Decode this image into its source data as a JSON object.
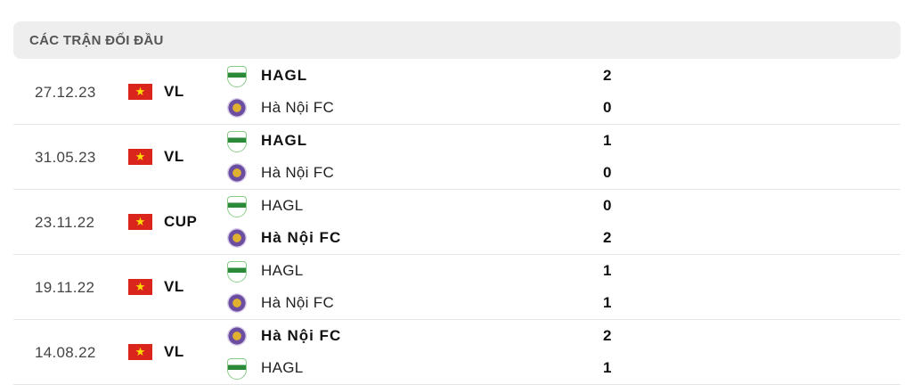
{
  "title": "CÁC TRẬN ĐỐI ĐẦU",
  "matches": [
    {
      "date": "27.12.23",
      "competition": "VL",
      "home": {
        "name": "HAGL",
        "logo": "hagl",
        "score": "2",
        "winner": true
      },
      "away": {
        "name": "Hà Nội FC",
        "logo": "hn",
        "score": "0",
        "winner": false
      }
    },
    {
      "date": "31.05.23",
      "competition": "VL",
      "home": {
        "name": "HAGL",
        "logo": "hagl",
        "score": "1",
        "winner": true
      },
      "away": {
        "name": "Hà Nội FC",
        "logo": "hn",
        "score": "0",
        "winner": false
      }
    },
    {
      "date": "23.11.22",
      "competition": "CUP",
      "home": {
        "name": "HAGL",
        "logo": "hagl",
        "score": "0",
        "winner": false
      },
      "away": {
        "name": "Hà Nội FC",
        "logo": "hn",
        "score": "2",
        "winner": true
      }
    },
    {
      "date": "19.11.22",
      "competition": "VL",
      "home": {
        "name": "HAGL",
        "logo": "hagl",
        "score": "1",
        "winner": false
      },
      "away": {
        "name": "Hà Nội FC",
        "logo": "hn",
        "score": "1",
        "winner": false
      }
    },
    {
      "date": "14.08.22",
      "competition": "VL",
      "home": {
        "name": "Hà Nội FC",
        "logo": "hn",
        "score": "2",
        "winner": true
      },
      "away": {
        "name": "HAGL",
        "logo": "hagl",
        "score": "1",
        "winner": false
      }
    }
  ],
  "flag_icon": "vietnam-flag-icon"
}
